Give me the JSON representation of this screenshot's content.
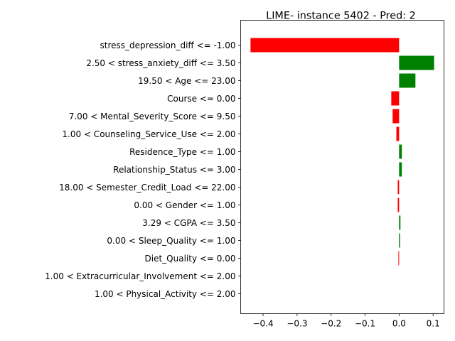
{
  "chart_data": {
    "type": "bar",
    "orientation": "horizontal",
    "title": "LIME- instance 5402 - Pred: 2",
    "xlabel": "",
    "ylabel": "",
    "xlim": [
      -0.466,
      0.132
    ],
    "x_ticks": [
      -0.4,
      -0.3,
      -0.2,
      -0.1,
      0.0,
      0.1
    ],
    "x_tick_labels": [
      "−0.4",
      "−0.3",
      "−0.2",
      "−0.1",
      "0.0",
      "0.1"
    ],
    "grid": false,
    "legend": "none",
    "colors": {
      "positive": "#008000",
      "negative": "#ff0000"
    },
    "categories": [
      "stress_depression_diff <= -1.00",
      "2.50 < stress_anxiety_diff <= 3.50",
      "19.50 < Age <= 23.00",
      "Course <= 0.00",
      "7.00 < Mental_Severity_Score <= 9.50",
      "1.00 < Counseling_Service_Use <= 2.00",
      "Residence_Type <= 1.00",
      "Relationship_Status <= 3.00",
      "18.00 < Semester_Credit_Load <= 22.00",
      "0.00 < Gender <= 1.00",
      "3.29 < CGPA <= 3.50",
      "0.00 < Sleep_Quality <= 1.00",
      "Diet_Quality <= 0.00",
      "1.00 < Extracurricular_Involvement <= 2.00",
      "1.00 < Physical_Activity <= 2.00"
    ],
    "values": [
      -0.437,
      0.103,
      0.048,
      -0.023,
      -0.019,
      -0.008,
      0.008,
      0.008,
      -0.004,
      -0.004,
      0.004,
      0.003,
      -0.002,
      0.0,
      0.0
    ]
  }
}
